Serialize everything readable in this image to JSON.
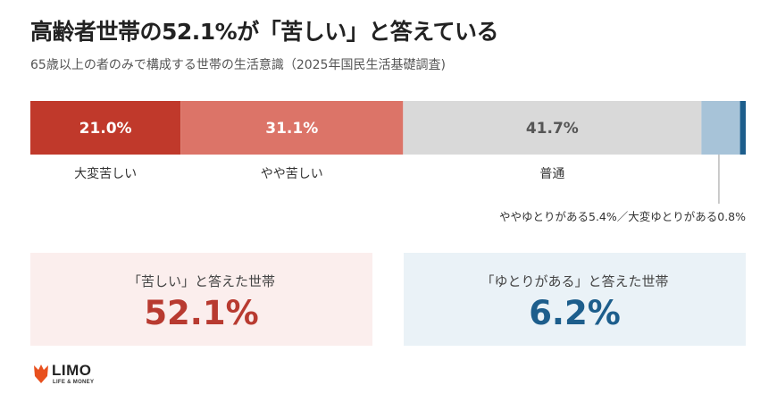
{
  "title": "高齢者世帯の52.1%が「苦しい」と答えている",
  "subtitle": "65歳以上の者のみで構成する世帯の生活意識（2025年国民生活基礎調査)",
  "chart_data": {
    "type": "bar",
    "orientation": "horizontal-stacked",
    "categories": [
      "大変苦しい",
      "やや苦しい",
      "普通",
      "ややゆとりがある",
      "大変ゆとりがある"
    ],
    "values": [
      21.0,
      31.1,
      41.7,
      5.4,
      0.8
    ],
    "data_labels": [
      "21.0%",
      "31.1%",
      "41.7%",
      "",
      ""
    ],
    "colors": [
      "#c0392b",
      "#dc7468",
      "#d9d9d9",
      "#a7c3d8",
      "#1d5e8c"
    ],
    "label_colors": [
      "#ffffff",
      "#ffffff",
      "#555555",
      "",
      ""
    ],
    "annotation": "ややゆとりがある5.4%／大変ゆとりがある0.8%",
    "xlim": [
      0,
      100
    ]
  },
  "cards": [
    {
      "label": "「苦しい」と答えた世帯",
      "value": "52.1%",
      "color": "#b83a30"
    },
    {
      "label": "「ゆとりがある」と答えた世帯",
      "value": "6.2%",
      "color": "#1d5e8c"
    }
  ],
  "logo": {
    "name": "LIMO",
    "tagline": "LIFE & MONEY",
    "color": "#e8501e"
  }
}
